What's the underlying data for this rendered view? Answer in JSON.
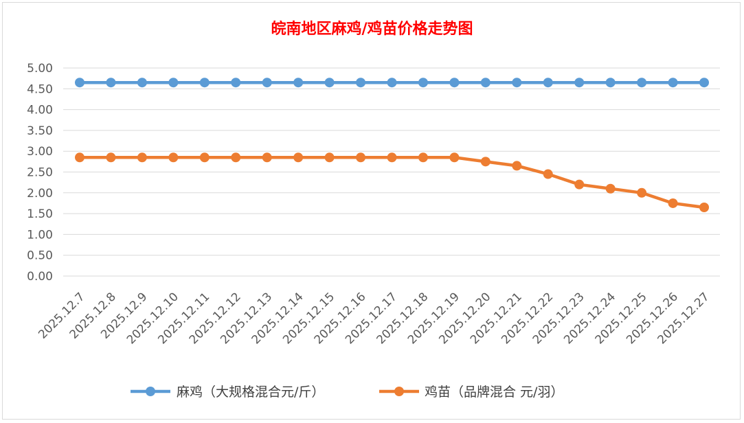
{
  "chart_data": {
    "type": "line",
    "title": "皖南地区麻鸡/鸡苗价格走势图",
    "categories": [
      "2025.12.7",
      "2025.12.8",
      "2025.12.9",
      "2025.12.10",
      "2025.12.11",
      "2025.12.12",
      "2025.12.13",
      "2025.12.14",
      "2025.12.15",
      "2025.12.16",
      "2025.12.17",
      "2025.12.18",
      "2025.12.19",
      "2025.12.20",
      "2025.12.21",
      "2025.12.22",
      "2025.12.23",
      "2025.12.24",
      "2025.12.25",
      "2025.12.26",
      "2025.12.27"
    ],
    "series": [
      {
        "name": "麻鸡（大规格混合元/斤）",
        "color": "#5b9bd5",
        "values": [
          4.65,
          4.65,
          4.65,
          4.65,
          4.65,
          4.65,
          4.65,
          4.65,
          4.65,
          4.65,
          4.65,
          4.65,
          4.65,
          4.65,
          4.65,
          4.65,
          4.65,
          4.65,
          4.65,
          4.65,
          4.65
        ]
      },
      {
        "name": "鸡苗（品牌混合 元/羽）",
        "color": "#ed7d31",
        "values": [
          2.85,
          2.85,
          2.85,
          2.85,
          2.85,
          2.85,
          2.85,
          2.85,
          2.85,
          2.85,
          2.85,
          2.85,
          2.85,
          2.75,
          2.65,
          2.45,
          2.2,
          2.1,
          2.0,
          1.75,
          1.65
        ]
      }
    ],
    "ylim": [
      0,
      5
    ],
    "yticks": [
      "0.00",
      "0.50",
      "1.00",
      "1.50",
      "2.00",
      "2.50",
      "3.00",
      "3.50",
      "4.00",
      "4.50",
      "5.00"
    ],
    "grid": true,
    "legend": "bottom"
  }
}
